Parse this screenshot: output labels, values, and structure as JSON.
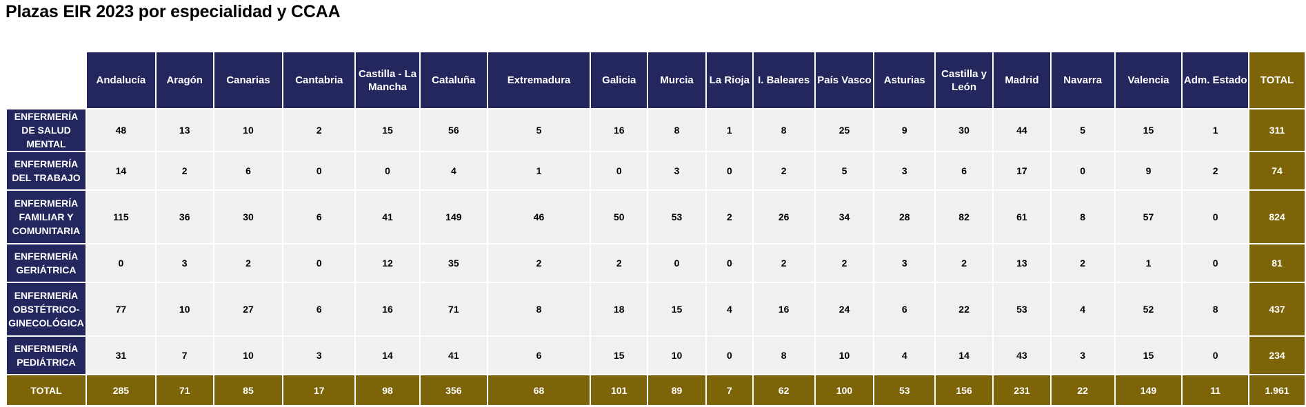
{
  "title": "Plazas EIR 2023 por especialidad y CCAA",
  "colors": {
    "header": "#24265e",
    "total": "#7e6409",
    "cell": "#f0f0f0"
  },
  "columns": [
    "Andalucía",
    "Aragón",
    "Canarias",
    "Cantabria",
    "Castilla - La Mancha",
    "Cataluña",
    "Extremadura",
    "Galicia",
    "Murcia",
    "La Rioja",
    "I. Baleares",
    "País Vasco",
    "Asturias",
    "Castilla y León",
    "Madrid",
    "Navarra",
    "Valencia",
    "Adm. Estado",
    "TOTAL"
  ],
  "rows": [
    {
      "label": "ENFERMERÍA DE SALUD MENTAL",
      "values": [
        "48",
        "13",
        "10",
        "2",
        "15",
        "56",
        "5",
        "16",
        "8",
        "1",
        "8",
        "25",
        "9",
        "30",
        "44",
        "5",
        "15",
        "1",
        "311"
      ]
    },
    {
      "label": "ENFERMERÍA DEL TRABAJO",
      "values": [
        "14",
        "2",
        "6",
        "0",
        "0",
        "4",
        "1",
        "0",
        "3",
        "0",
        "2",
        "5",
        "3",
        "6",
        "17",
        "0",
        "9",
        "2",
        "74"
      ]
    },
    {
      "label": "ENFERMERÍA FAMILIAR Y COMUNITARIA",
      "values": [
        "115",
        "36",
        "30",
        "6",
        "41",
        "149",
        "46",
        "50",
        "53",
        "2",
        "26",
        "34",
        "28",
        "82",
        "61",
        "8",
        "57",
        "0",
        "824"
      ]
    },
    {
      "label": "ENFERMERÍA GERIÁTRICA",
      "values": [
        "0",
        "3",
        "2",
        "0",
        "12",
        "35",
        "2",
        "2",
        "0",
        "0",
        "2",
        "2",
        "3",
        "2",
        "13",
        "2",
        "1",
        "0",
        "81"
      ]
    },
    {
      "label": "ENFERMERÍA OBSTÉTRICO-GINECOLÓGICA",
      "values": [
        "77",
        "10",
        "27",
        "6",
        "16",
        "71",
        "8",
        "18",
        "15",
        "4",
        "16",
        "24",
        "6",
        "22",
        "53",
        "4",
        "52",
        "8",
        "437"
      ]
    },
    {
      "label": "ENFERMERÍA PEDIÁTRICA",
      "values": [
        "31",
        "7",
        "10",
        "3",
        "14",
        "41",
        "6",
        "15",
        "10",
        "0",
        "8",
        "10",
        "4",
        "14",
        "43",
        "3",
        "15",
        "0",
        "234"
      ]
    }
  ],
  "total_row": {
    "label": "TOTAL",
    "values": [
      "285",
      "71",
      "85",
      "17",
      "98",
      "356",
      "68",
      "101",
      "89",
      "7",
      "62",
      "100",
      "53",
      "156",
      "231",
      "22",
      "149",
      "11",
      "1.961"
    ]
  }
}
